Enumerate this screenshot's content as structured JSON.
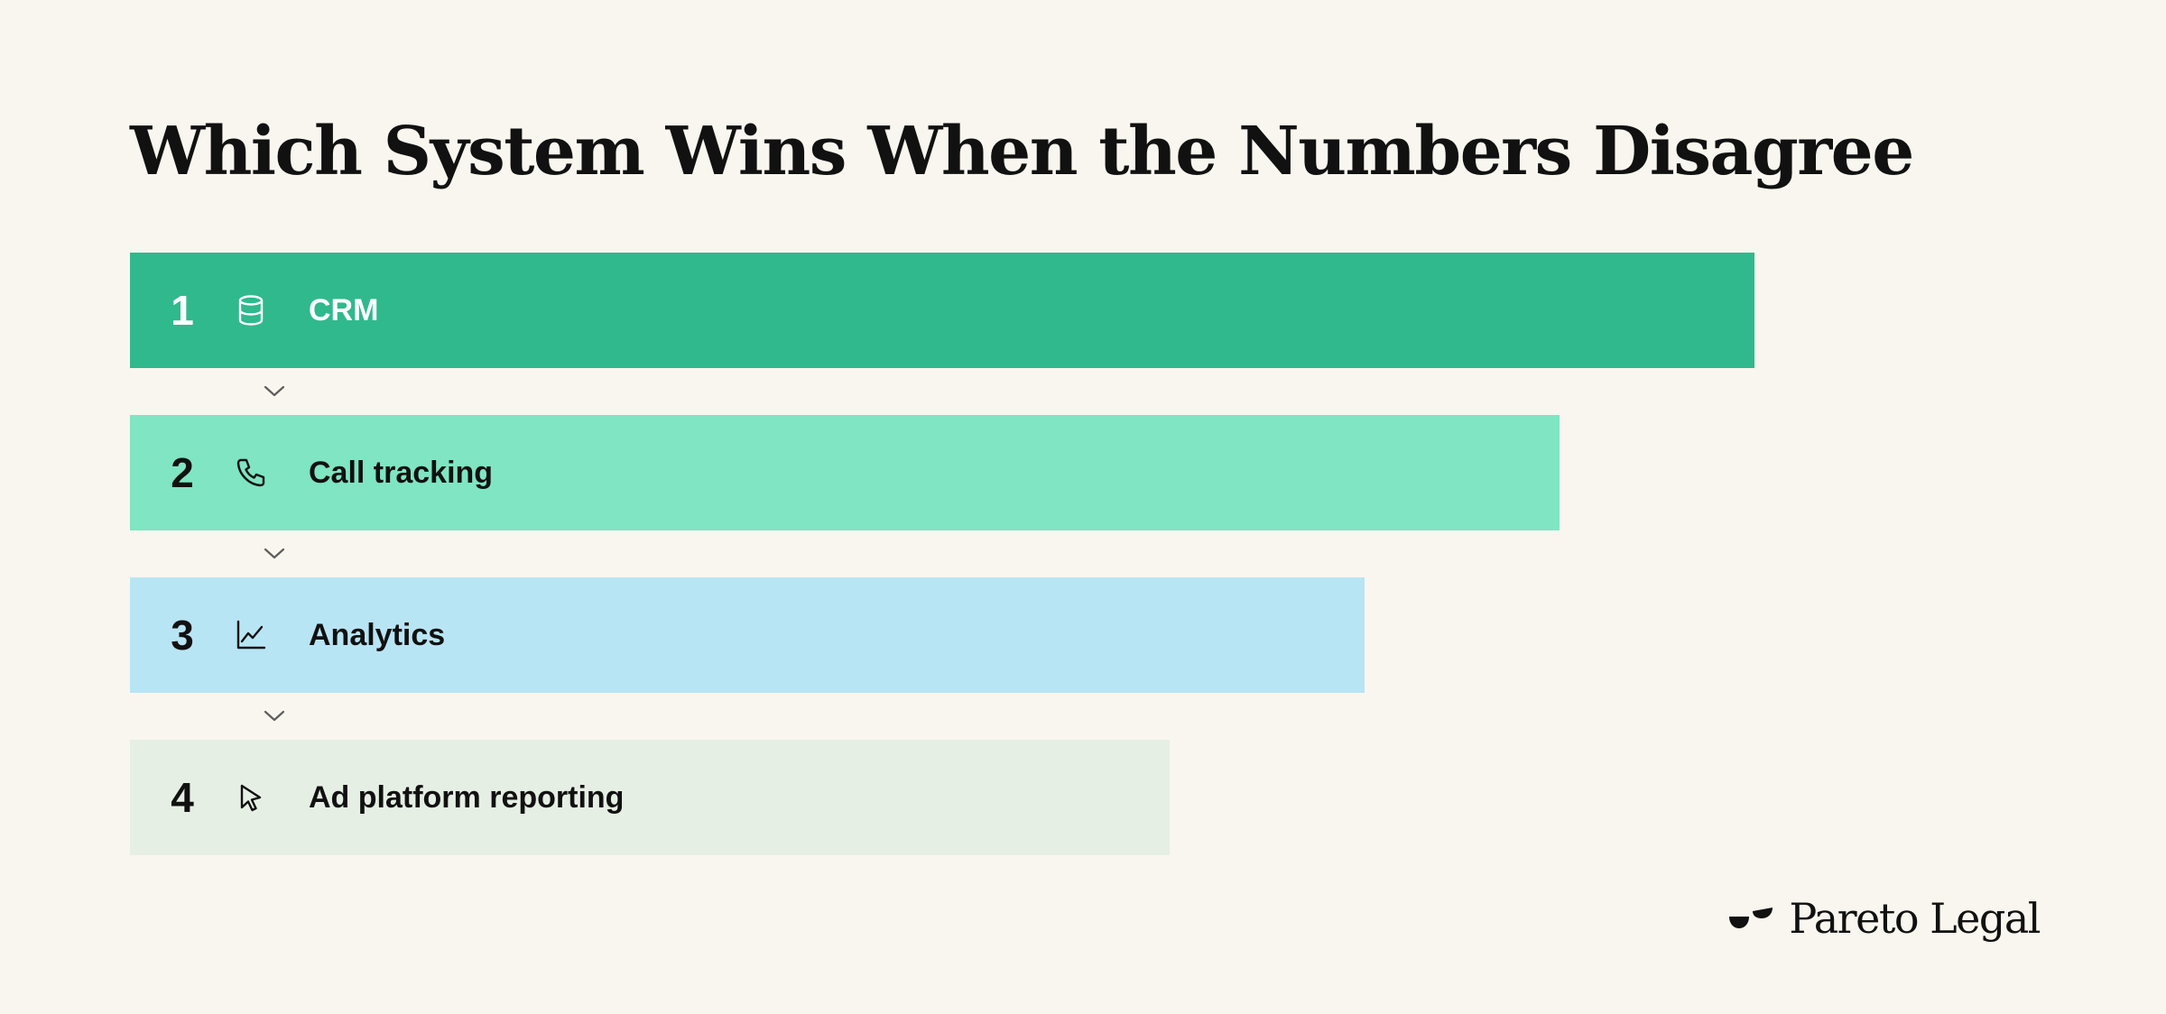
{
  "title": "Which System Wins When the Numbers Disagree",
  "tiers": [
    {
      "rank": "1",
      "label": "CRM",
      "icon": "database-icon",
      "bar_length_fraction": 1.0,
      "color": "#30b98c",
      "text_color": "#ffffff"
    },
    {
      "rank": "2",
      "label": "Call tracking",
      "icon": "phone-icon",
      "bar_length_fraction": 0.88,
      "color": "#7fe5c3",
      "text_color": "#111111"
    },
    {
      "rank": "3",
      "label": "Analytics",
      "icon": "line-chart-icon",
      "bar_length_fraction": 0.76,
      "color": "#b8e5f4",
      "text_color": "#111111"
    },
    {
      "rank": "4",
      "label": "Ad platform reporting",
      "icon": "cursor-click-icon",
      "bar_length_fraction": 0.64,
      "color": "#e6efe4",
      "text_color": "#111111"
    }
  ],
  "connector_icon": "chevron-down-icon",
  "brand": {
    "name": "Pareto Legal",
    "mark_icon": "pareto-legal-logo-icon"
  }
}
